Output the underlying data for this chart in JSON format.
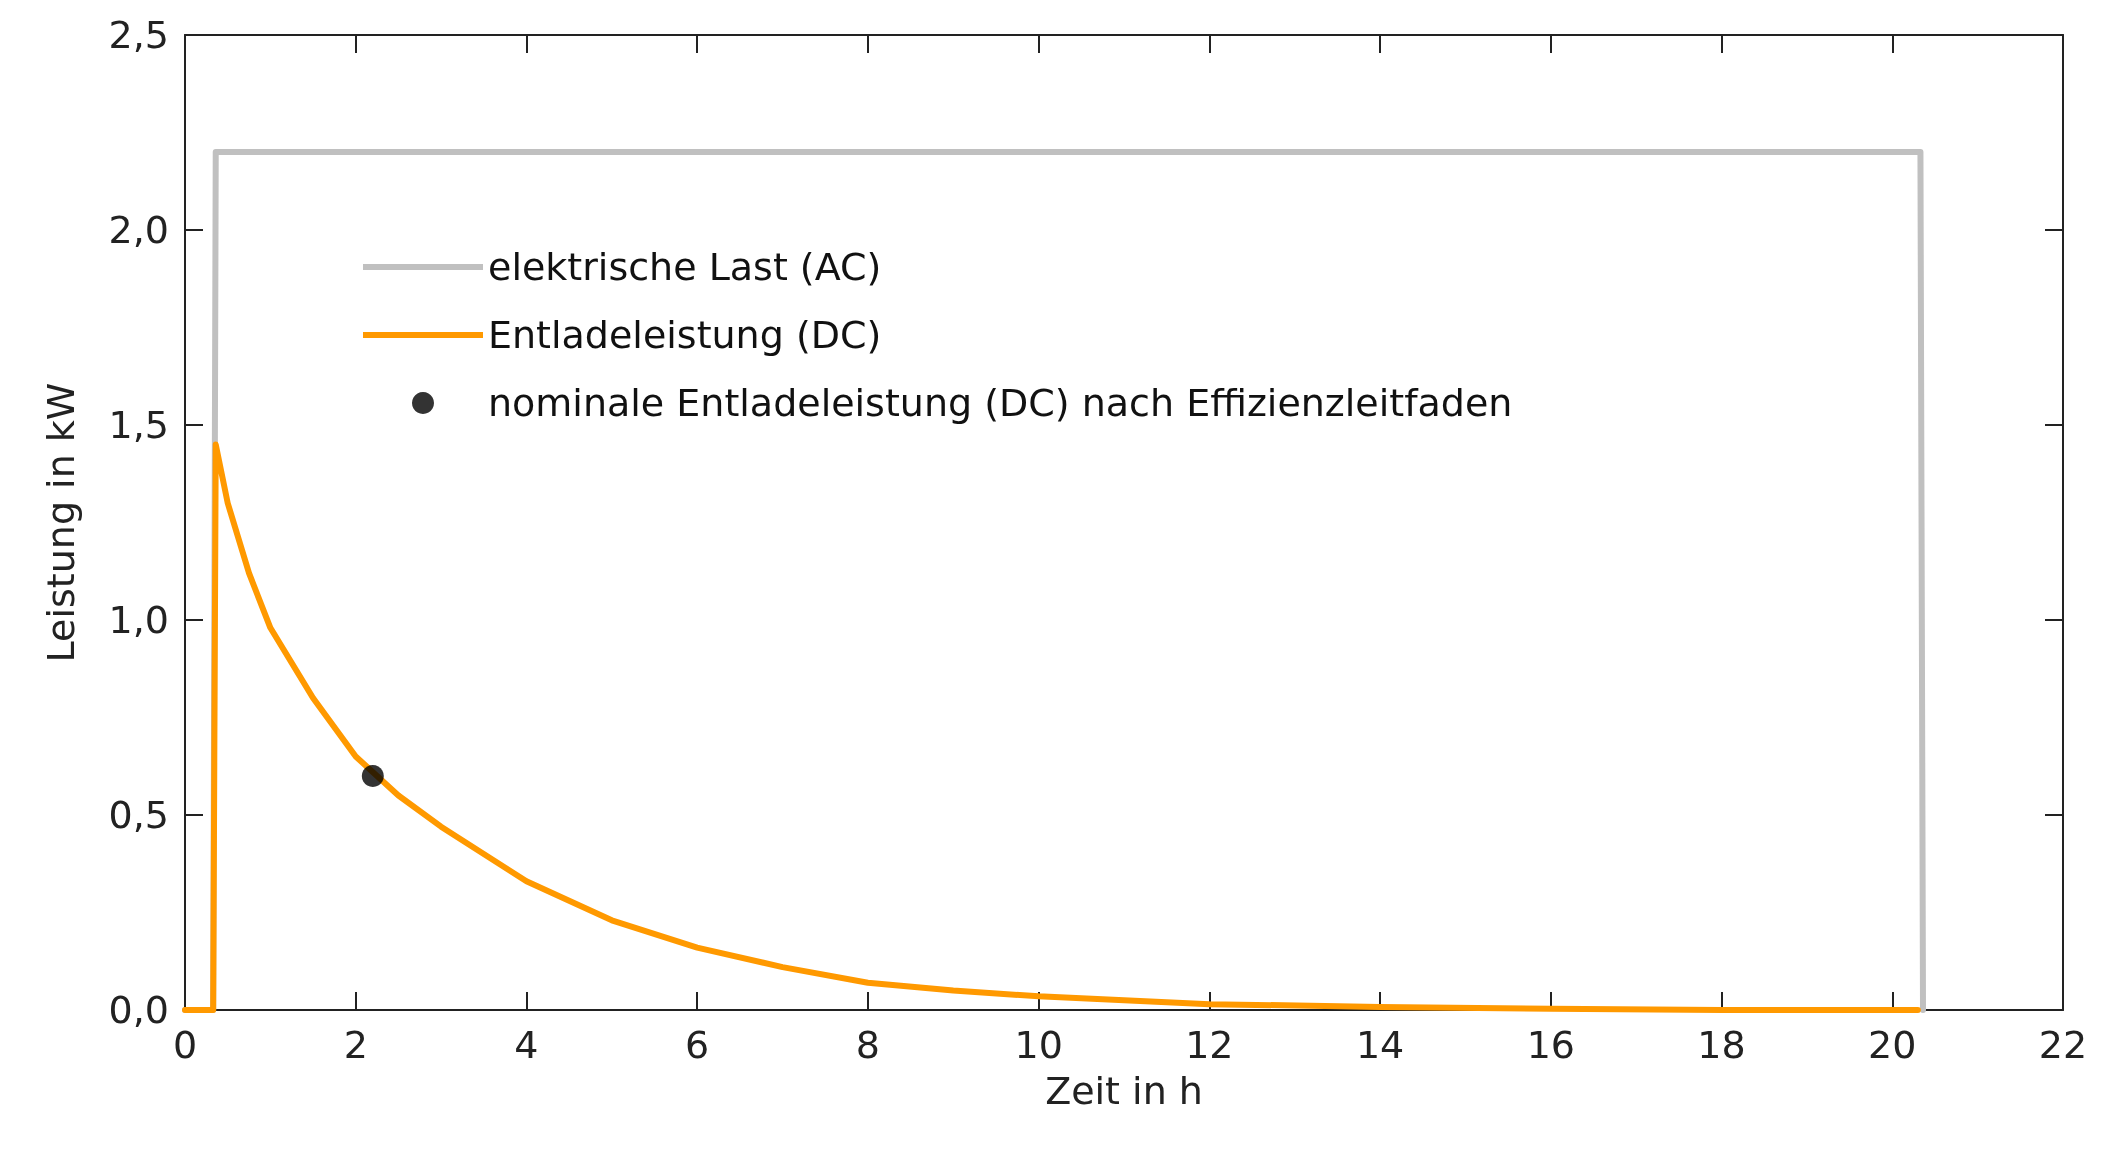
{
  "chart_data": {
    "type": "line",
    "xlabel": "Zeit in h",
    "ylabel": "Leistung in kW",
    "xlim": [
      0,
      22
    ],
    "xticks": [
      0,
      2,
      4,
      6,
      8,
      10,
      12,
      14,
      16,
      18,
      20,
      22
    ],
    "ylim": [
      0,
      2.5
    ],
    "yticks": [
      {
        "value": 0,
        "label": "0,0"
      },
      {
        "value": 0.5,
        "label": "0,5"
      },
      {
        "value": 1,
        "label": "1,0"
      },
      {
        "value": 1.5,
        "label": "1,5"
      },
      {
        "value": 2,
        "label": "2,0"
      },
      {
        "value": 2.5,
        "label": "2,5"
      }
    ],
    "grid": false,
    "legend": "top left",
    "marker": "none",
    "line_style": "solid",
    "series": [
      {
        "name": "elektrische Last (AC)",
        "color": "#c0c0c0",
        "x": [
          0,
          0.33,
          0.36,
          20.33,
          20.36
        ],
        "values": [
          0,
          0,
          2.2,
          2.2,
          0
        ]
      },
      {
        "name": "Entladeleistung (DC)",
        "color": "#ff9900",
        "x": [
          0,
          0.33,
          0.36,
          0.5,
          0.75,
          1,
          1.5,
          2,
          2.5,
          3,
          4,
          5,
          6,
          7,
          8,
          9,
          10,
          12,
          14,
          16,
          18,
          20.3
        ],
        "values": [
          0,
          0,
          1.45,
          1.3,
          1.12,
          0.98,
          0.8,
          0.65,
          0.55,
          0.47,
          0.33,
          0.23,
          0.16,
          0.11,
          0.07,
          0.05,
          0.035,
          0.015,
          0.008,
          0.003,
          0,
          0
        ]
      },
      {
        "name": "nominale Entladeleistung (DC) nach Effizienzleitfaden",
        "type": "scatter",
        "marker": "circle",
        "color": "#000000",
        "x": [
          2.2
        ],
        "values": [
          0.6
        ]
      }
    ]
  }
}
